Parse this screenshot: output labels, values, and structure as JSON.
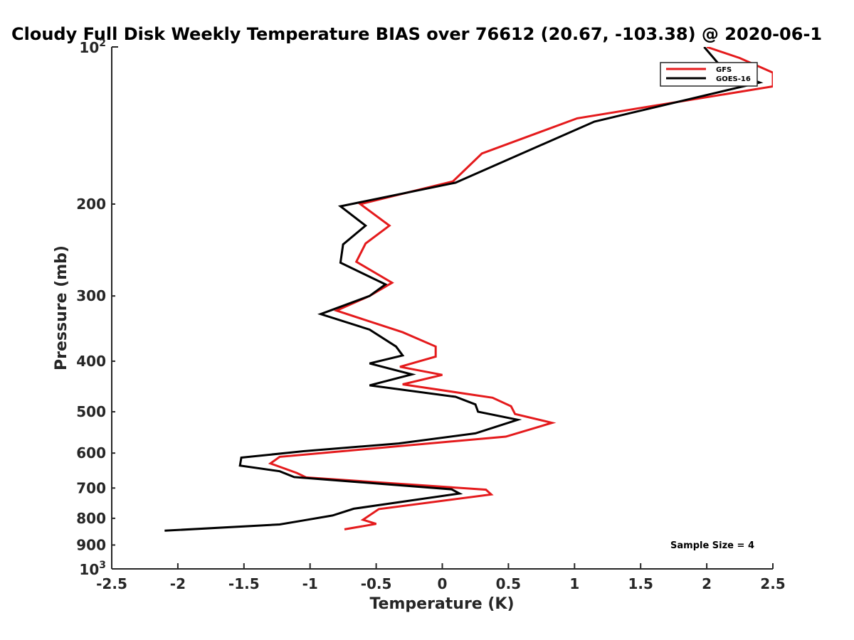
{
  "chart_data": {
    "type": "line",
    "title": "Cloudy Full Disk Weekly Temperature BIAS over 76612 (20.67, -103.38) @ 2020-06-1",
    "xlabel": "Temperature (K)",
    "ylabel": "Pressure (mb)",
    "xlim": [
      -2.5,
      2.5
    ],
    "ylim": [
      100,
      1000
    ],
    "y_scale": "log",
    "y_reversed": true,
    "grid": false,
    "legend_position": "top-right",
    "x_ticks": [
      -2.5,
      -2,
      -1.5,
      -1,
      -0.5,
      0,
      0.5,
      1,
      1.5,
      2,
      2.5
    ],
    "x_tick_labels": [
      "-2.5",
      "-2",
      "-1.5",
      "-1",
      "-0.5",
      "0",
      "0.5",
      "1",
      "1.5",
      "2",
      "2.5"
    ],
    "y_ticks": [
      200,
      300,
      400,
      500,
      600,
      700,
      800,
      900
    ],
    "y_tick_labels": [
      "200",
      "300",
      "400",
      "500",
      "600",
      "700",
      "800",
      "900"
    ],
    "y_top_label": {
      "base": "10",
      "exp": "2"
    },
    "y_bottom_label": {
      "base": "10",
      "exp": "3"
    },
    "annotation": "Sample Size = 4",
    "series": [
      {
        "name": "GFS",
        "color": "#e41a1c",
        "points": [
          [
            2.0,
            100
          ],
          [
            2.25,
            105
          ],
          [
            2.5,
            112
          ],
          [
            2.5,
            119
          ],
          [
            1.02,
            137
          ],
          [
            0.3,
            160
          ],
          [
            0.08,
            181
          ],
          [
            -0.62,
            200
          ],
          [
            -0.4,
            220
          ],
          [
            -0.58,
            238
          ],
          [
            -0.65,
            258
          ],
          [
            -0.38,
            283
          ],
          [
            -0.55,
            300
          ],
          [
            -0.8,
            320
          ],
          [
            -0.3,
            352
          ],
          [
            -0.05,
            375
          ],
          [
            -0.05,
            392
          ],
          [
            -0.32,
            410
          ],
          [
            0.0,
            425
          ],
          [
            -0.3,
            443
          ],
          [
            0.38,
            470
          ],
          [
            0.52,
            488
          ],
          [
            0.55,
            505
          ],
          [
            0.83,
            525
          ],
          [
            0.48,
            558
          ],
          [
            -1.23,
            610
          ],
          [
            -1.3,
            628
          ],
          [
            -1.1,
            655
          ],
          [
            -1.03,
            668
          ],
          [
            0.33,
            705
          ],
          [
            0.37,
            720
          ],
          [
            -0.48,
            768
          ],
          [
            -0.6,
            805
          ],
          [
            -0.5,
            820
          ],
          [
            -0.74,
            840
          ]
        ]
      },
      {
        "name": "GOES-16",
        "color": "#000000",
        "points": [
          [
            1.98,
            100
          ],
          [
            2.12,
            110
          ],
          [
            2.4,
            117
          ],
          [
            1.15,
            139
          ],
          [
            0.1,
            182
          ],
          [
            -0.77,
            202
          ],
          [
            -0.58,
            220
          ],
          [
            -0.75,
            239
          ],
          [
            -0.77,
            259
          ],
          [
            -0.43,
            285
          ],
          [
            -0.55,
            300
          ],
          [
            -0.92,
            325
          ],
          [
            -0.55,
            348
          ],
          [
            -0.35,
            375
          ],
          [
            -0.3,
            390
          ],
          [
            -0.55,
            404
          ],
          [
            -0.23,
            424
          ],
          [
            -0.55,
            445
          ],
          [
            0.1,
            468
          ],
          [
            0.25,
            484
          ],
          [
            0.27,
            500
          ],
          [
            0.57,
            518
          ],
          [
            0.25,
            550
          ],
          [
            -0.33,
            575
          ],
          [
            -1.05,
            595
          ],
          [
            -1.52,
            612
          ],
          [
            -1.53,
            634
          ],
          [
            -1.23,
            650
          ],
          [
            -1.12,
            667
          ],
          [
            0.07,
            704
          ],
          [
            0.13,
            717
          ],
          [
            -0.67,
            767
          ],
          [
            -0.83,
            790
          ],
          [
            -1.08,
            810
          ],
          [
            -1.23,
            822
          ],
          [
            -2.1,
            845
          ]
        ]
      }
    ]
  }
}
